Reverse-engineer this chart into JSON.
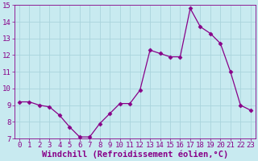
{
  "x": [
    0,
    1,
    2,
    3,
    4,
    5,
    6,
    7,
    8,
    9,
    10,
    11,
    12,
    13,
    14,
    15,
    16,
    17,
    18,
    19,
    20,
    21,
    22,
    23
  ],
  "y": [
    9.2,
    9.2,
    9.0,
    8.9,
    8.4,
    7.7,
    7.1,
    7.1,
    7.9,
    8.5,
    9.1,
    9.1,
    9.9,
    12.3,
    12.1,
    11.9,
    11.9,
    14.8,
    13.7,
    13.3,
    12.7,
    11.0,
    9.0,
    8.7
  ],
  "line_color": "#880088",
  "marker": "D",
  "marker_size": 2.5,
  "background_color": "#c8eaf0",
  "grid_color": "#aad4dc",
  "xlabel": "Windchill (Refroidissement éolien,°C)",
  "ylabel": "",
  "xlim": [
    -0.5,
    23.5
  ],
  "ylim": [
    7,
    15
  ],
  "yticks": [
    7,
    8,
    9,
    10,
    11,
    12,
    13,
    14,
    15
  ],
  "xticks": [
    0,
    1,
    2,
    3,
    4,
    5,
    6,
    7,
    8,
    9,
    10,
    11,
    12,
    13,
    14,
    15,
    16,
    17,
    18,
    19,
    20,
    21,
    22,
    23
  ],
  "tick_fontsize": 6.5,
  "xlabel_fontsize": 7.5
}
